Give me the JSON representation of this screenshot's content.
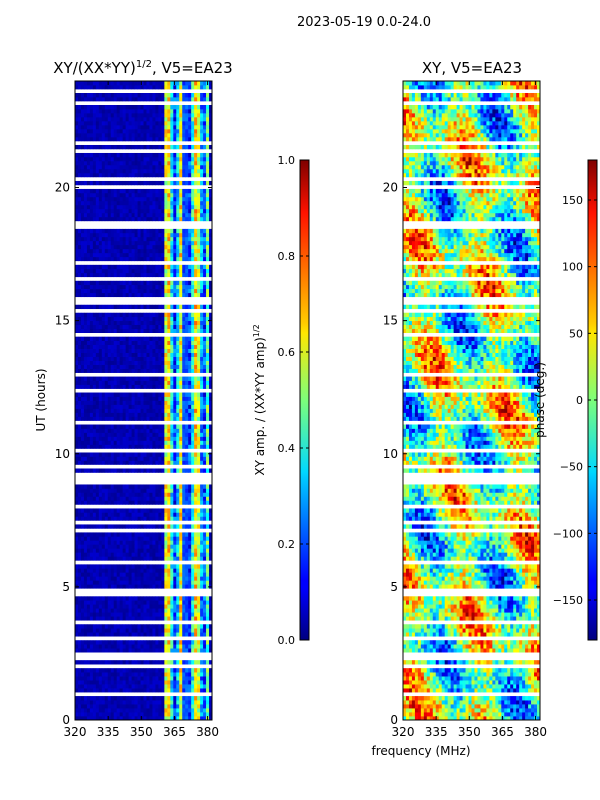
{
  "suptitle": "2023-05-19 0.0-24.0",
  "chart_data": [
    {
      "type": "heatmap",
      "title": "XY/(XX*YY)^1/2, V5=EA23",
      "title_main": "XY/(XX*YY)",
      "title_sup": "1/2",
      "title_tail": ", V5=EA23",
      "xlabel": "",
      "ylabel": "UT (hours)",
      "xlim": [
        320,
        382
      ],
      "ylim": [
        0,
        24
      ],
      "xticks": [
        320,
        335,
        350,
        365,
        380
      ],
      "yticks": [
        0,
        5,
        10,
        15,
        20
      ],
      "colorbar": {
        "label_main": "XY amp. / (XX*YY amp)",
        "label_sup": "1/2",
        "range": [
          0.0,
          1.0
        ],
        "ticks": [
          0.0,
          0.2,
          0.4,
          0.6,
          0.8,
          1.0
        ],
        "tick_labels": [
          "0.0",
          "0.2",
          "0.4",
          "0.6",
          "0.8",
          "1.0"
        ]
      }
    },
    {
      "type": "heatmap",
      "title": "XY, V5=EA23",
      "xlabel": "frequency (MHz)",
      "ylabel": "",
      "xlim": [
        320,
        382
      ],
      "ylim": [
        0,
        24
      ],
      "xticks": [
        320,
        335,
        350,
        365,
        380
      ],
      "yticks": [
        0,
        5,
        10,
        15,
        20
      ],
      "colorbar": {
        "label": "phase (deg.)",
        "range": [
          -180,
          180
        ],
        "ticks": [
          -150,
          -100,
          -50,
          0,
          50,
          100,
          150
        ],
        "tick_labels": [
          "−150",
          "−100",
          "−50",
          "0",
          "50",
          "100",
          "150"
        ]
      }
    }
  ]
}
